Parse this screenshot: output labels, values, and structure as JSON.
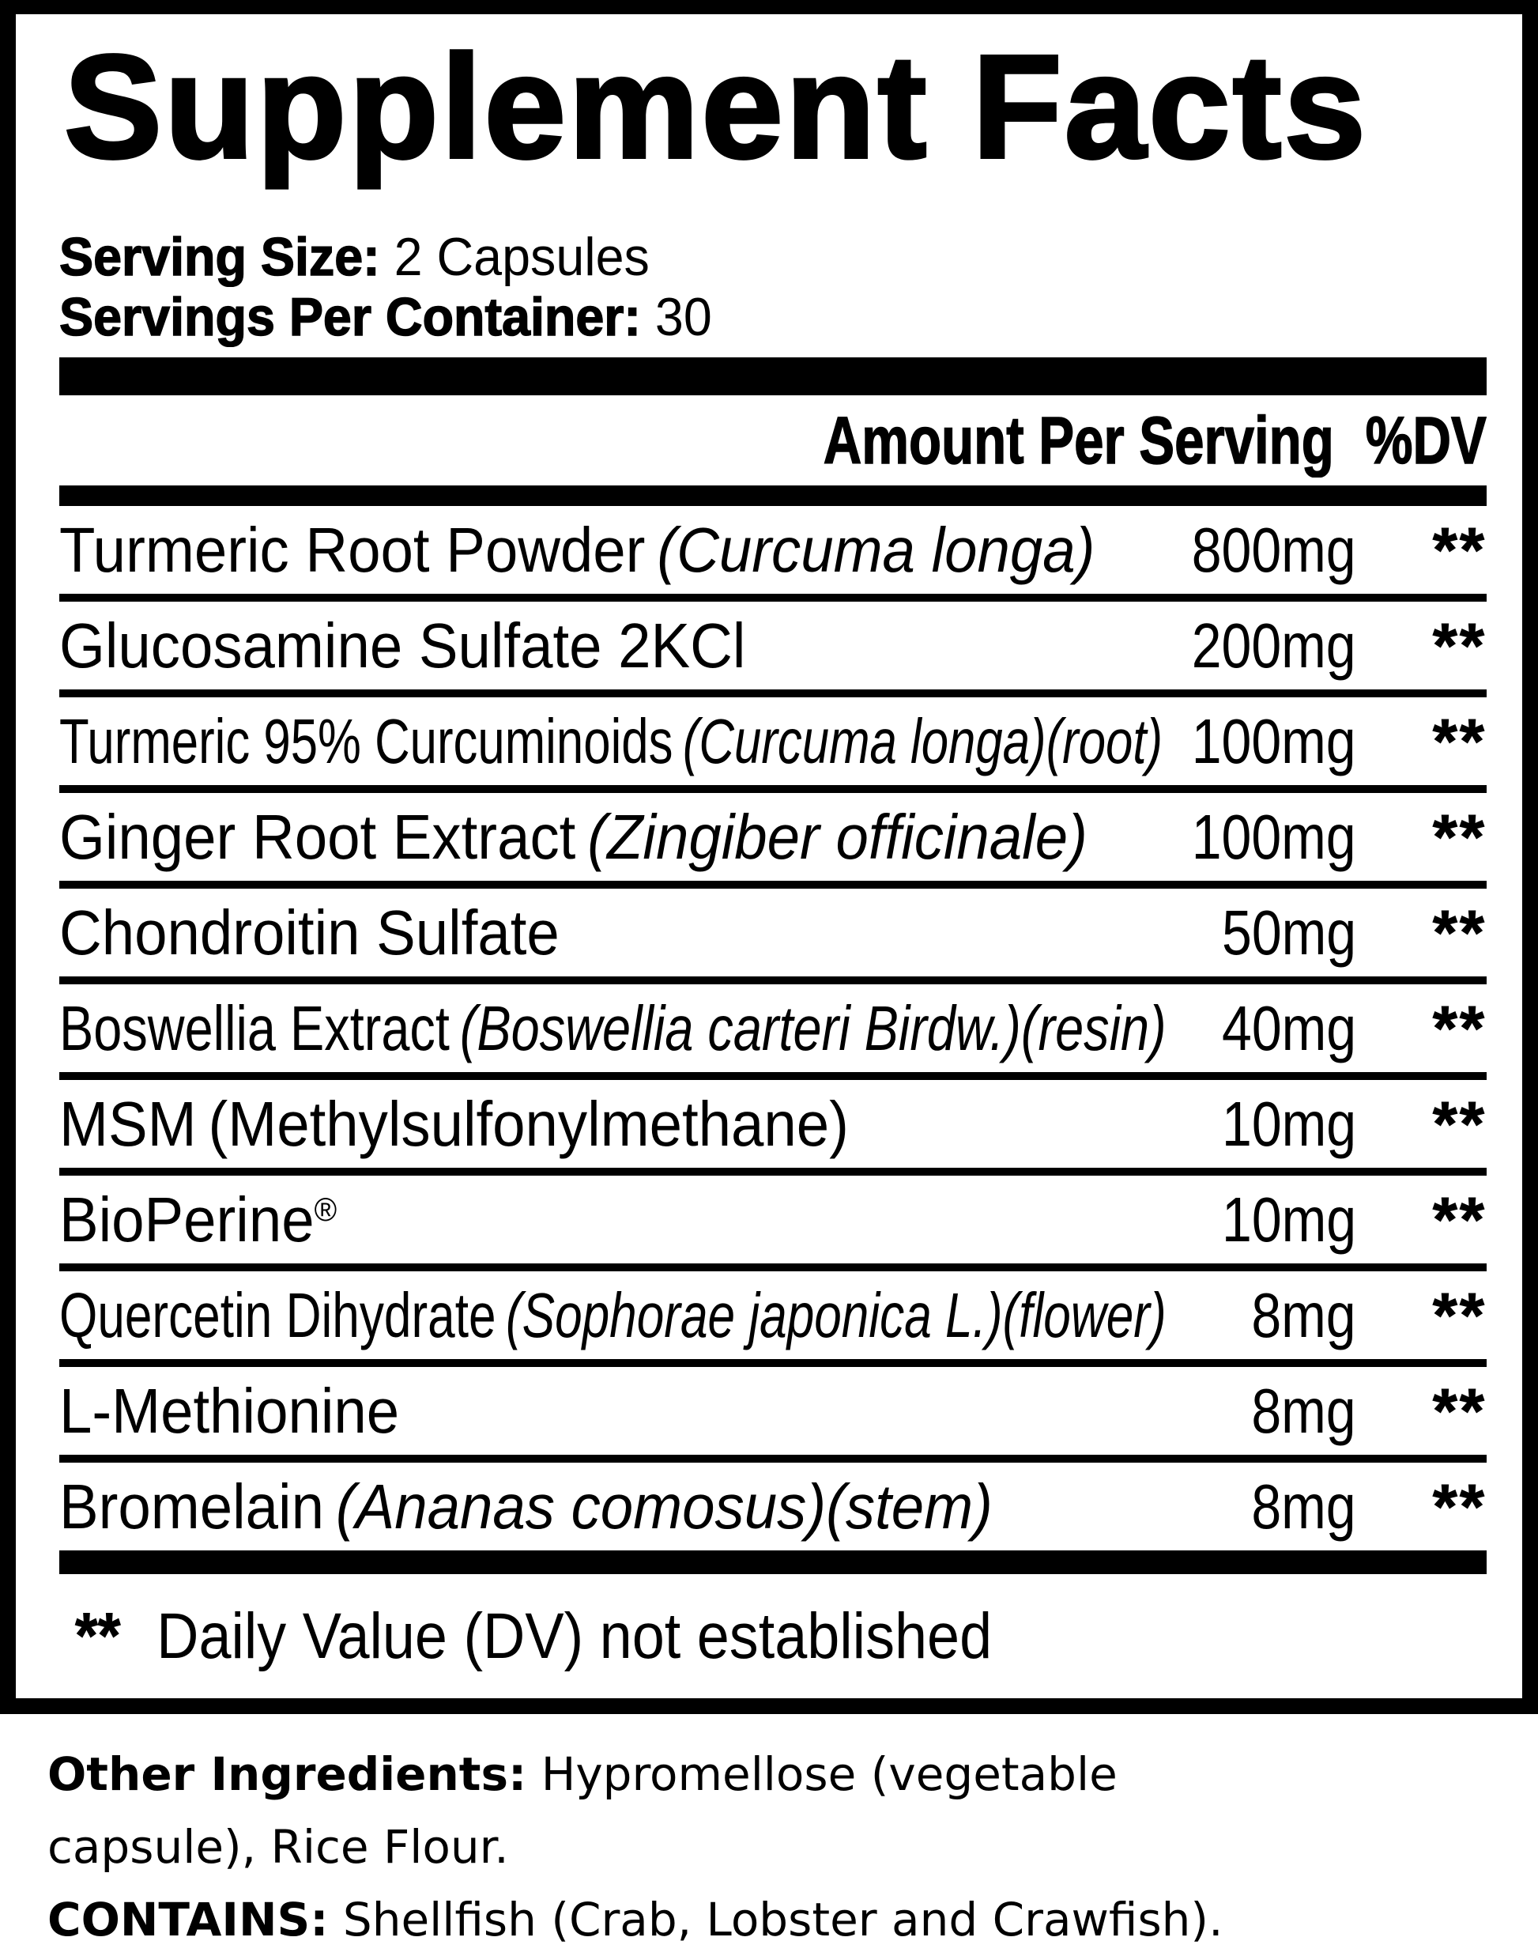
{
  "title": "Supplement Facts",
  "serving": {
    "size_label": "Serving Size:",
    "size_value": "2 Capsules",
    "count_label": "Servings Per Container:",
    "count_value": "30"
  },
  "table": {
    "header": {
      "amount": "Amount Per Serving",
      "dv": "%DV"
    },
    "rows": [
      {
        "name": "Turmeric Root Powder",
        "note": "(Curcuma longa)",
        "note_style": "italic",
        "amount": "800mg",
        "dv": "**"
      },
      {
        "name": "Glucosamine Sulfate 2KCl",
        "note": "",
        "note_style": "",
        "amount": "200mg",
        "dv": "**"
      },
      {
        "name": "Turmeric 95% Curcuminoids",
        "note": "(Curcuma longa)(root)",
        "note_style": "italic",
        "amount": "100mg",
        "dv": "**"
      },
      {
        "name": "Ginger Root Extract",
        "note": "(Zingiber officinale)",
        "note_style": "italic",
        "amount": "100mg",
        "dv": "**"
      },
      {
        "name": "Chondroitin Sulfate",
        "note": "",
        "note_style": "",
        "amount": "50mg",
        "dv": "**"
      },
      {
        "name": "Boswellia Extract",
        "note": "(Boswellia carteri Birdw.)(resin)",
        "note_style": "italic",
        "amount": "40mg",
        "dv": "**"
      },
      {
        "name": "MSM",
        "note": "(Methylsulfonylmethane)",
        "note_style": "plain",
        "amount": "10mg",
        "dv": "**"
      },
      {
        "name": "BioPerine®",
        "note": "",
        "note_style": "",
        "amount": "10mg",
        "dv": "**"
      },
      {
        "name": "Quercetin Dihydrate",
        "note": "(Sophorae japonica L.)(flower)",
        "note_style": "italic",
        "amount": "8mg",
        "dv": "**"
      },
      {
        "name": "L-Methionine",
        "note": "",
        "note_style": "",
        "amount": "8mg",
        "dv": "**"
      },
      {
        "name": "Bromelain",
        "note": "(Ananas comosus)(stem)",
        "note_style": "italic",
        "amount": "8mg",
        "dv": "**"
      }
    ],
    "footnote": {
      "mark": "**",
      "text": "Daily Value (DV) not established"
    }
  },
  "bottom": {
    "line1_label": "Other Ingredients:",
    "line1_text": " Hypromellose (vegetable",
    "line2_text": "capsule), Rice Flour.",
    "line3_label": "CONTAINS:",
    "line3_text": " Shellfish (Crab, Lobster and Crawfish)."
  },
  "colors": {
    "ink": "#000000",
    "paper": "#ffffff"
  }
}
